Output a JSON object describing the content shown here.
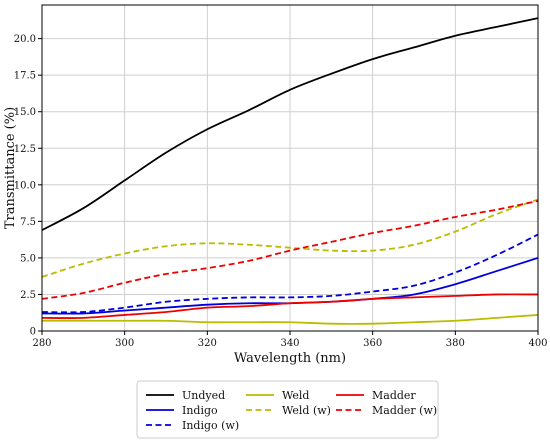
{
  "chart_data": {
    "type": "line",
    "title": "",
    "xlabel": "Wavelength (nm)",
    "ylabel": "Transmittance (%)",
    "xlim": [
      280,
      400
    ],
    "ylim": [
      0,
      22.3
    ],
    "grid": true,
    "legend_position": "bottom, outside plot",
    "x_ticks": [
      280,
      300,
      320,
      340,
      360,
      380,
      400
    ],
    "y_ticks": [
      0,
      2.5,
      5.0,
      7.5,
      10.0,
      12.5,
      15.0,
      17.5,
      20.0
    ],
    "x_tick_labels": [
      "280",
      "300",
      "320",
      "340",
      "360",
      "380",
      "400"
    ],
    "y_tick_labels": [
      "0",
      "2.5",
      "5.0",
      "7.5",
      "10.0",
      "12.5",
      "15.0",
      "17.5",
      "20.0"
    ],
    "x": [
      280,
      290,
      300,
      310,
      320,
      330,
      340,
      350,
      360,
      370,
      380,
      390,
      400
    ],
    "series": [
      {
        "name": "Undyed",
        "color": "#000000",
        "dash": "solid",
        "values": [
          6.9,
          8.4,
          10.3,
          12.2,
          13.8,
          15.1,
          16.5,
          17.6,
          18.6,
          19.4,
          20.2,
          20.8,
          21.4
        ]
      },
      {
        "name": "Indigo",
        "color": "#0000dd",
        "dash": "solid",
        "values": [
          1.2,
          1.2,
          1.4,
          1.6,
          1.8,
          1.9,
          1.9,
          2.0,
          2.2,
          2.5,
          3.2,
          4.1,
          5.0
        ]
      },
      {
        "name": "Indigo (w)",
        "color": "#0000dd",
        "dash": "dashed",
        "values": [
          1.3,
          1.3,
          1.6,
          2.0,
          2.2,
          2.3,
          2.3,
          2.4,
          2.7,
          3.1,
          4.0,
          5.2,
          6.6
        ]
      },
      {
        "name": "Weld",
        "color": "#bbbb00",
        "dash": "solid",
        "values": [
          0.7,
          0.7,
          0.7,
          0.7,
          0.6,
          0.6,
          0.6,
          0.5,
          0.5,
          0.6,
          0.7,
          0.9,
          1.1
        ]
      },
      {
        "name": "Weld (w)",
        "color": "#bbbb00",
        "dash": "dashed",
        "values": [
          3.7,
          4.6,
          5.3,
          5.8,
          6.0,
          5.9,
          5.7,
          5.5,
          5.5,
          5.9,
          6.8,
          8.0,
          9.0
        ]
      },
      {
        "name": "Madder",
        "color": "#ee0000",
        "dash": "solid",
        "values": [
          0.9,
          0.9,
          1.1,
          1.3,
          1.6,
          1.7,
          1.9,
          2.0,
          2.2,
          2.3,
          2.4,
          2.5,
          2.5
        ]
      },
      {
        "name": "Madder (w)",
        "color": "#ee0000",
        "dash": "dashed",
        "values": [
          2.2,
          2.6,
          3.3,
          3.9,
          4.3,
          4.8,
          5.5,
          6.1,
          6.7,
          7.2,
          7.8,
          8.3,
          8.9
        ]
      }
    ],
    "legend_order": [
      "Undyed",
      "Indigo",
      "Indigo (w)",
      "Weld",
      "Weld (w)",
      "Madder",
      "Madder (w)"
    ]
  }
}
